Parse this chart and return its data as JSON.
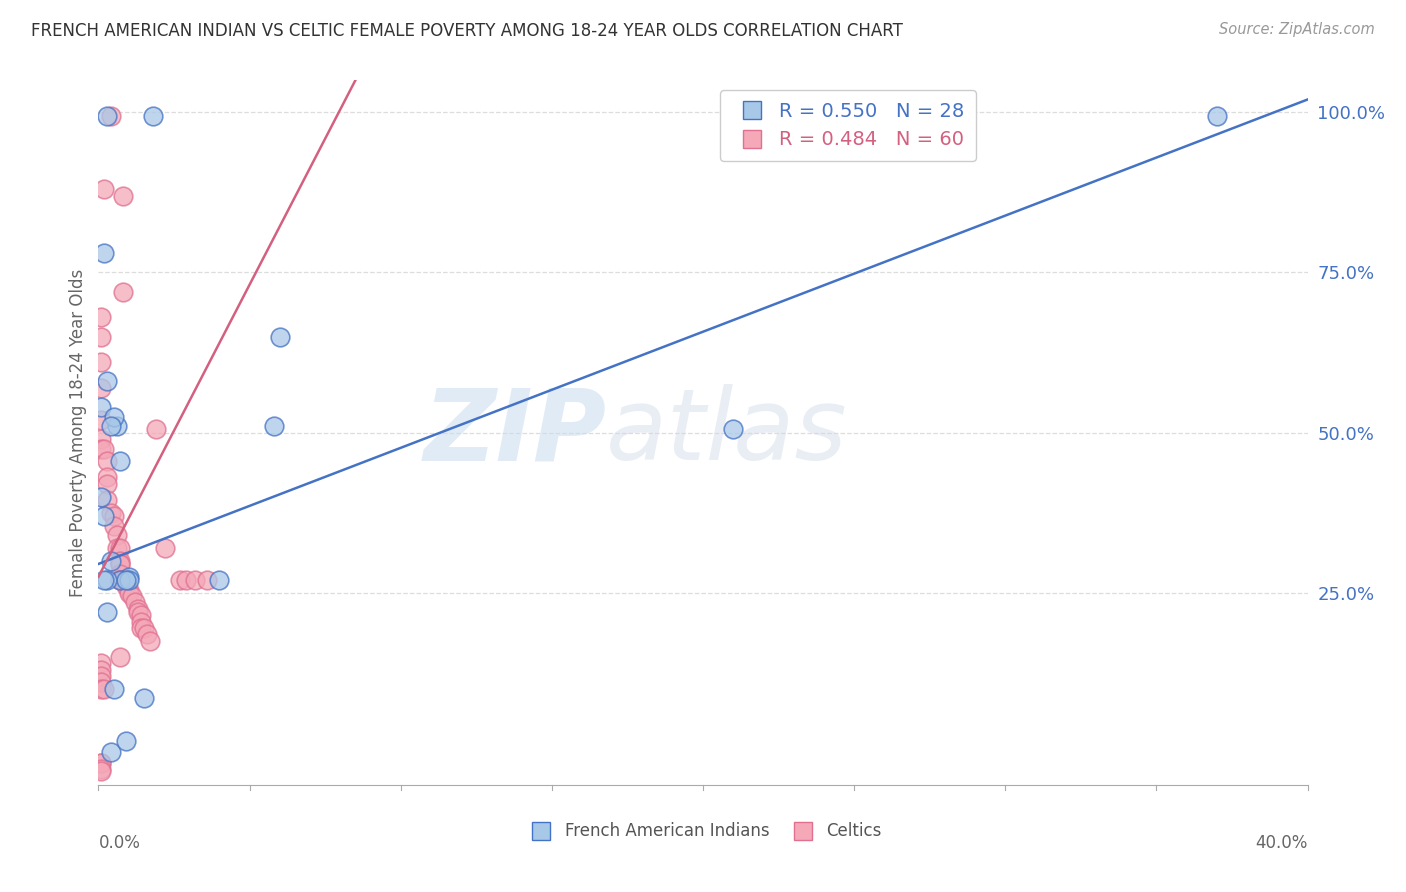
{
  "title": "FRENCH AMERICAN INDIAN VS CELTIC FEMALE POVERTY AMONG 18-24 YEAR OLDS CORRELATION CHART",
  "source": "Source: ZipAtlas.com",
  "ylabel": "Female Poverty Among 18-24 Year Olds",
  "xlim": [
    0.0,
    0.4
  ],
  "ylim": [
    -0.05,
    1.05
  ],
  "ytick_vals": [
    0.0,
    0.25,
    0.5,
    0.75,
    1.0
  ],
  "ytick_labels": [
    "",
    "25.0%",
    "50.0%",
    "75.0%",
    "100.0%"
  ],
  "legend_blue_r": "R = 0.550",
  "legend_blue_n": "N = 28",
  "legend_pink_r": "R = 0.484",
  "legend_pink_n": "N = 60",
  "legend_label_blue": "French American Indians",
  "legend_label_pink": "Celtics",
  "blue_color": "#A8C8E8",
  "pink_color": "#F4A8B8",
  "blue_edge_color": "#4472C4",
  "pink_edge_color": "#E07090",
  "blue_line_color": "#4472C4",
  "pink_line_color": "#D46080",
  "watermark_zip": "ZIP",
  "watermark_atlas": "atlas",
  "blue_scatter_x": [
    0.003,
    0.018,
    0.003,
    0.002,
    0.001,
    0.006,
    0.007,
    0.002,
    0.001,
    0.005,
    0.004,
    0.01,
    0.007,
    0.06,
    0.058,
    0.04,
    0.01,
    0.009,
    0.003,
    0.004,
    0.005,
    0.003,
    0.21,
    0.37,
    0.004,
    0.009,
    0.015,
    0.002
  ],
  "blue_scatter_y": [
    0.995,
    0.995,
    0.58,
    0.78,
    0.54,
    0.51,
    0.455,
    0.37,
    0.4,
    0.525,
    0.3,
    0.275,
    0.27,
    0.65,
    0.51,
    0.27,
    0.27,
    0.27,
    0.27,
    0.51,
    0.1,
    0.22,
    0.505,
    0.995,
    0.002,
    0.018,
    0.085,
    0.27
  ],
  "pink_scatter_x": [
    0.004,
    0.002,
    0.008,
    0.008,
    0.001,
    0.001,
    0.001,
    0.001,
    0.001,
    0.001,
    0.001,
    0.002,
    0.003,
    0.003,
    0.003,
    0.003,
    0.004,
    0.005,
    0.005,
    0.006,
    0.006,
    0.007,
    0.007,
    0.007,
    0.007,
    0.007,
    0.007,
    0.007,
    0.008,
    0.008,
    0.009,
    0.01,
    0.01,
    0.011,
    0.012,
    0.013,
    0.013,
    0.014,
    0.014,
    0.014,
    0.015,
    0.016,
    0.017,
    0.019,
    0.022,
    0.027,
    0.029,
    0.032,
    0.036,
    0.007,
    0.001,
    0.001,
    0.001,
    0.001,
    0.001,
    0.002,
    0.001,
    0.001,
    0.001,
    0.001
  ],
  "pink_scatter_y": [
    0.995,
    0.88,
    0.87,
    0.72,
    0.68,
    0.65,
    0.61,
    0.57,
    0.52,
    0.49,
    0.475,
    0.475,
    0.455,
    0.43,
    0.42,
    0.395,
    0.375,
    0.37,
    0.355,
    0.34,
    0.32,
    0.32,
    0.3,
    0.295,
    0.295,
    0.28,
    0.27,
    0.27,
    0.27,
    0.27,
    0.26,
    0.255,
    0.25,
    0.245,
    0.235,
    0.225,
    0.22,
    0.215,
    0.205,
    0.195,
    0.195,
    0.185,
    0.175,
    0.505,
    0.32,
    0.27,
    0.27,
    0.27,
    0.27,
    0.15,
    0.14,
    0.13,
    0.12,
    0.11,
    0.1,
    0.1,
    -0.015,
    -0.015,
    -0.025,
    -0.028
  ],
  "blue_line_x0": 0.0,
  "blue_line_y0": 0.295,
  "blue_line_x1": 0.4,
  "blue_line_y1": 1.02,
  "pink_line_x0": 0.0,
  "pink_line_y0": 0.275,
  "pink_line_x1": 0.085,
  "pink_line_y1": 1.05,
  "grid_color": "#DDDDDD",
  "spine_color": "#AAAAAA",
  "tick_label_color_y": "#4472C4",
  "tick_label_color_x": "#666666",
  "title_color": "#333333",
  "source_color": "#999999",
  "ylabel_color": "#666666"
}
